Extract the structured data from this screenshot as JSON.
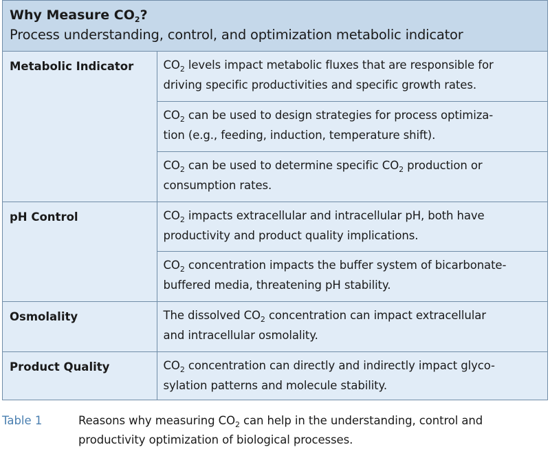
{
  "header": {
    "title_pre": "Why Measure CO",
    "title_sub": "2",
    "title_post": "?",
    "subtitle": "Process understanding, control, and optimization metabolic indicator"
  },
  "rows": [
    {
      "category": "Metabolic Indicator",
      "items": [
        {
          "l1a": "CO",
          "l1s": "2",
          "l1b": " levels impact metabolic fluxes that are responsible for",
          "l2a": "driving specific productivities and specific growth rates.",
          "l2s": "",
          "l2b": ""
        },
        {
          "l1a": "CO",
          "l1s": "2",
          "l1b": " can be used to design strategies for process optimiza-",
          "l2a": "tion (e.g., feeding, induction, temperature shift).",
          "l2s": "",
          "l2b": ""
        },
        {
          "l1a": "CO",
          "l1s": "2",
          "l1b": " can be used to determine specific CO",
          "l1s2": "2",
          "l1c": " production or",
          "l2a": "consumption rates.",
          "l2s": "",
          "l2b": ""
        }
      ]
    },
    {
      "category": "pH Control",
      "items": [
        {
          "l1a": "CO",
          "l1s": "2",
          "l1b": " impacts extracellular and intracellular pH, both have",
          "l2a": "productivity and product quality implications.",
          "l2s": "",
          "l2b": ""
        },
        {
          "l1a": "CO",
          "l1s": "2",
          "l1b": " concentration impacts the buffer system of bicarbonate-",
          "l2a": "buffered media, threatening pH stability.",
          "l2s": "",
          "l2b": ""
        }
      ]
    },
    {
      "category": "Osmolality",
      "items": [
        {
          "l1a": "The dissolved CO",
          "l1s": "2",
          "l1b": " concentration can impact extracellular",
          "l2a": "and intracellular osmolality.",
          "l2s": "",
          "l2b": ""
        }
      ]
    },
    {
      "category": "Product Quality",
      "items": [
        {
          "l1a": "CO",
          "l1s": "2",
          "l1b": " concentration can directly and indirectly impact glyco-",
          "l2a": "sylation patterns and molecule stability.",
          "l2s": "",
          "l2b": ""
        }
      ]
    }
  ],
  "caption": {
    "number": "Table 1",
    "line1_pre": "Reasons why measuring CO",
    "line1_sub": "2",
    "line1_post": " can help in the understanding, control and",
    "line2": "productivity optimization of biological processes."
  },
  "colors": {
    "header_bg": "#c5d8ea",
    "body_bg": "#e1ecf7",
    "border": "#6f8ca7",
    "caption_number": "#4a7fb0"
  }
}
